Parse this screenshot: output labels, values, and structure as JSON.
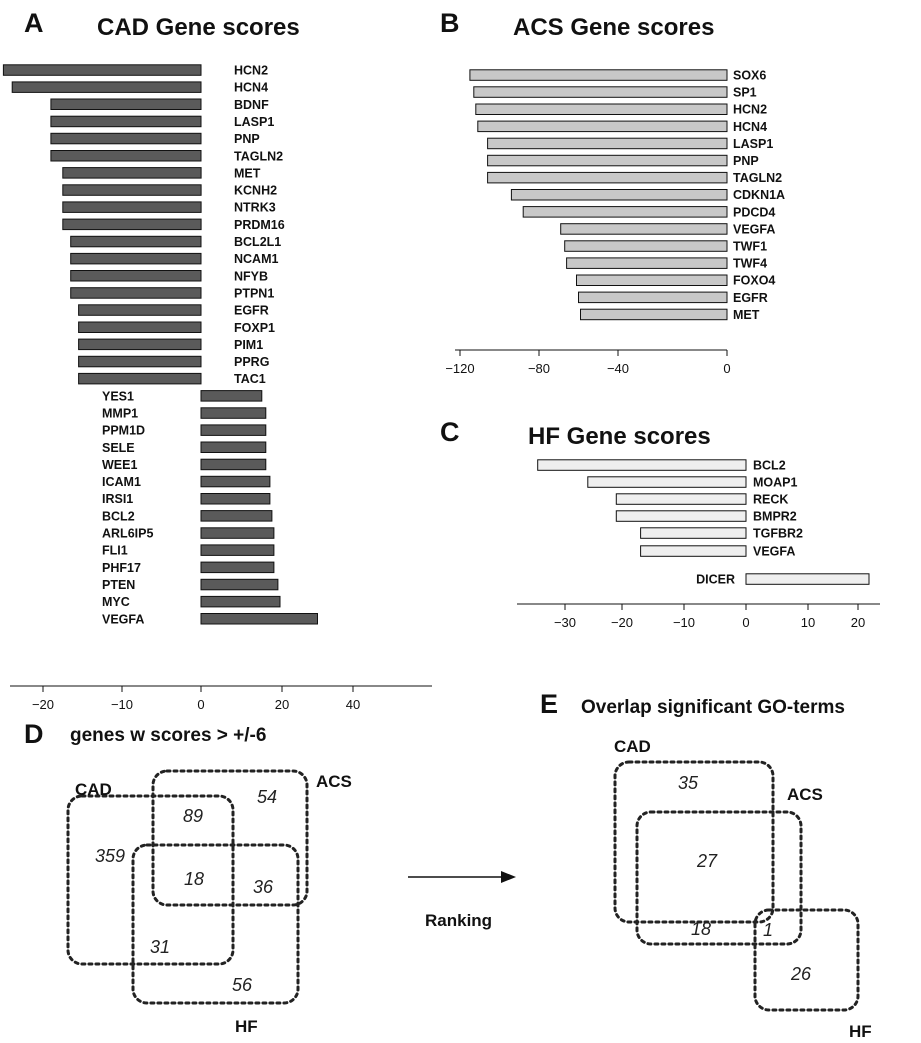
{
  "panels": {
    "A": {
      "letter": "A",
      "title": "CAD Gene scores"
    },
    "B": {
      "letter": "B",
      "title": "ACS Gene scores"
    },
    "C": {
      "letter": "C",
      "title": "HF Gene scores"
    },
    "D": {
      "letter": "D",
      "title": "genes w scores > +/-6"
    },
    "E": {
      "letter": "E",
      "title": "Overlap significant GO-terms"
    }
  },
  "chart_data": [
    {
      "id": "A",
      "type": "bar",
      "orientation": "horizontal",
      "title": "CAD Gene scores",
      "color": "#5a5a5a",
      "xlim": [
        -25,
        44
      ],
      "xticks": [
        -20,
        -10,
        0,
        20,
        40
      ],
      "categories": [
        "HCN2",
        "HCN4",
        "BDNF",
        "LASP1",
        "PNP",
        "TAGLN2",
        "MET",
        "KCNH2",
        "NTRK3",
        "PRDM16",
        "BCL2L1",
        "NCAM1",
        "NFYB",
        "PTPN1",
        "EGFR",
        "FOXP1",
        "PIM1",
        "PPRG",
        "TAC1",
        "YES1",
        "MMP1",
        "PPM1D",
        "SELE",
        "WEE1",
        "ICAM1",
        "IRSI1",
        "BCL2",
        "ARL6IP5",
        "FLI1",
        "PHF17",
        "PTEN",
        "MYC",
        "VEGFA"
      ],
      "values": [
        -24.5,
        -23.5,
        -19,
        -19,
        -19,
        -19,
        -17.5,
        -17.5,
        -17.5,
        -17.5,
        -16.5,
        -16.5,
        -16.5,
        -16.5,
        -15.5,
        -15.5,
        -15.5,
        -15.5,
        -15.5,
        15,
        16,
        16,
        16,
        16,
        17,
        17,
        17.5,
        18,
        18,
        18,
        19,
        19.5,
        30
      ]
    },
    {
      "id": "B",
      "type": "bar",
      "orientation": "horizontal",
      "title": "ACS Gene scores",
      "color": "#c8c8c8",
      "xlim": [
        -122,
        0
      ],
      "xticks": [
        -120,
        -80,
        -40,
        0
      ],
      "categories": [
        "SOX6",
        "SP1",
        "HCN2",
        "HCN4",
        "LASP1",
        "PNP",
        "TAGLN2",
        "CDKN1A",
        "PDCD4",
        "VEGFA",
        "TWF1",
        "TWF4",
        "FOXO4",
        "EGFR",
        "MET"
      ],
      "values": [
        -115,
        -113,
        -112,
        -111,
        -106,
        -106,
        -106,
        -94,
        -88,
        -69,
        -67,
        -66,
        -61,
        -60,
        -59
      ]
    },
    {
      "id": "C",
      "type": "bar",
      "orientation": "horizontal",
      "title": "HF Gene scores",
      "color": "#efefef",
      "xlim": [
        -36,
        24
      ],
      "xticks": [
        -30,
        -20,
        -10,
        0,
        10,
        20
      ],
      "categories": [
        "BCL2",
        "MOAP1",
        "RECK",
        "BMPR2",
        "TGFBR2",
        "VEGFA",
        "DICER"
      ],
      "values": [
        -34,
        -26,
        -21,
        -21,
        -17,
        -17,
        22
      ]
    }
  ],
  "venn_d": {
    "labels": {
      "cad": "CAD",
      "acs": "ACS",
      "hf": "HF"
    },
    "numbers": [
      "359",
      "89",
      "54",
      "18",
      "36",
      "31",
      "56"
    ]
  },
  "arrow": {
    "label": "Ranking"
  },
  "venn_e": {
    "labels": {
      "cad": "CAD",
      "acs": "ACS",
      "hf": "HF"
    },
    "numbers": [
      "35",
      "27",
      "18",
      "1",
      "26"
    ]
  }
}
